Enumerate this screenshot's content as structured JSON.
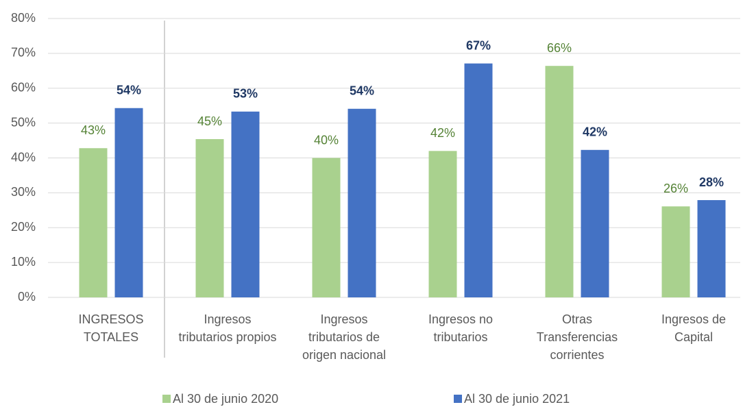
{
  "chart_data": {
    "type": "bar",
    "categories": [
      "INGRESOS TOTALES",
      "Ingresos tributarios propios",
      "Ingresos tributarios de origen nacional",
      "Ingresos no tributarios",
      "Otras Transferencias corrientes",
      "Ingresos de Capital"
    ],
    "series": [
      {
        "name": "Al 30 de junio 2020",
        "color": "#a9d18e",
        "label_color": "#548235",
        "values": [
          42.8,
          45.4,
          40.0,
          42.0,
          66.4,
          26.1
        ],
        "value_labels": [
          "43%",
          "45%",
          "40%",
          "42%",
          "66%",
          "26%"
        ]
      },
      {
        "name": "Al 30 de junio 2021",
        "color": "#4472c4",
        "label_color": "#1f3864",
        "values": [
          54.3,
          53.3,
          54.1,
          67.1,
          42.3,
          27.9
        ],
        "value_labels": [
          "54%",
          "53%",
          "54%",
          "67%",
          "42%",
          "28%"
        ]
      }
    ],
    "ylim": [
      0,
      80
    ],
    "yticks": [
      {
        "value": 0,
        "label": "0%"
      },
      {
        "value": 10,
        "label": "10%"
      },
      {
        "value": 20,
        "label": "20%"
      },
      {
        "value": 30,
        "label": "30%"
      },
      {
        "value": 40,
        "label": "40%"
      },
      {
        "value": 50,
        "label": "50%"
      },
      {
        "value": 60,
        "label": "60%"
      },
      {
        "value": 70,
        "label": "70%"
      },
      {
        "value": 80,
        "label": "80%"
      }
    ],
    "grid": true,
    "legend": "bottom"
  }
}
